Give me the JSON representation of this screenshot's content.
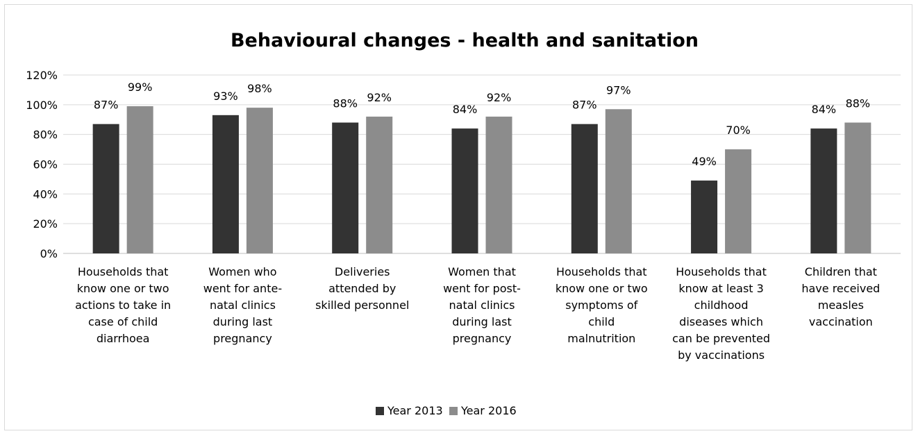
{
  "chart_data": {
    "type": "bar",
    "title": "Behavioural changes - health and sanitation",
    "xlabel": "",
    "ylabel": "",
    "ylim": [
      0,
      120
    ],
    "y_ticks": [
      "0%",
      "20%",
      "40%",
      "60%",
      "80%",
      "100%",
      "120%"
    ],
    "y_tick_values": [
      0,
      20,
      40,
      60,
      80,
      100,
      120
    ],
    "grid": true,
    "legend_position": "bottom",
    "value_format": "percent",
    "categories": [
      [
        "Households that",
        "know one or two",
        "actions to take in",
        "case of child",
        "diarrhoea"
      ],
      [
        "Women who",
        "went for ante-",
        "natal clinics",
        "during last",
        "pregnancy"
      ],
      [
        "Deliveries",
        "attended by",
        "skilled personnel"
      ],
      [
        "Women that",
        "went for post-",
        "natal clinics",
        "during last",
        "pregnancy"
      ],
      [
        "Households that",
        "know one or two",
        "symptoms of",
        "child",
        "malnutrition"
      ],
      [
        "Households that",
        "know at least 3",
        "childhood",
        "diseases which",
        "can be prevented",
        "by vaccinations"
      ],
      [
        "Children that",
        "have received",
        "measles",
        "vaccination"
      ]
    ],
    "series": [
      {
        "name": "Year 2013",
        "color": "#333333",
        "values": [
          87,
          93,
          88,
          84,
          87,
          49,
          84
        ],
        "labels": [
          "87%",
          "93%",
          "88%",
          "84%",
          "87%",
          "49%",
          "84%"
        ]
      },
      {
        "name": "Year 2016",
        "color": "#8c8c8c",
        "values": [
          99,
          98,
          92,
          92,
          97,
          70,
          88
        ],
        "labels": [
          "99%",
          "98%",
          "92%",
          "92%",
          "97%",
          "70%",
          "88%"
        ]
      }
    ]
  }
}
